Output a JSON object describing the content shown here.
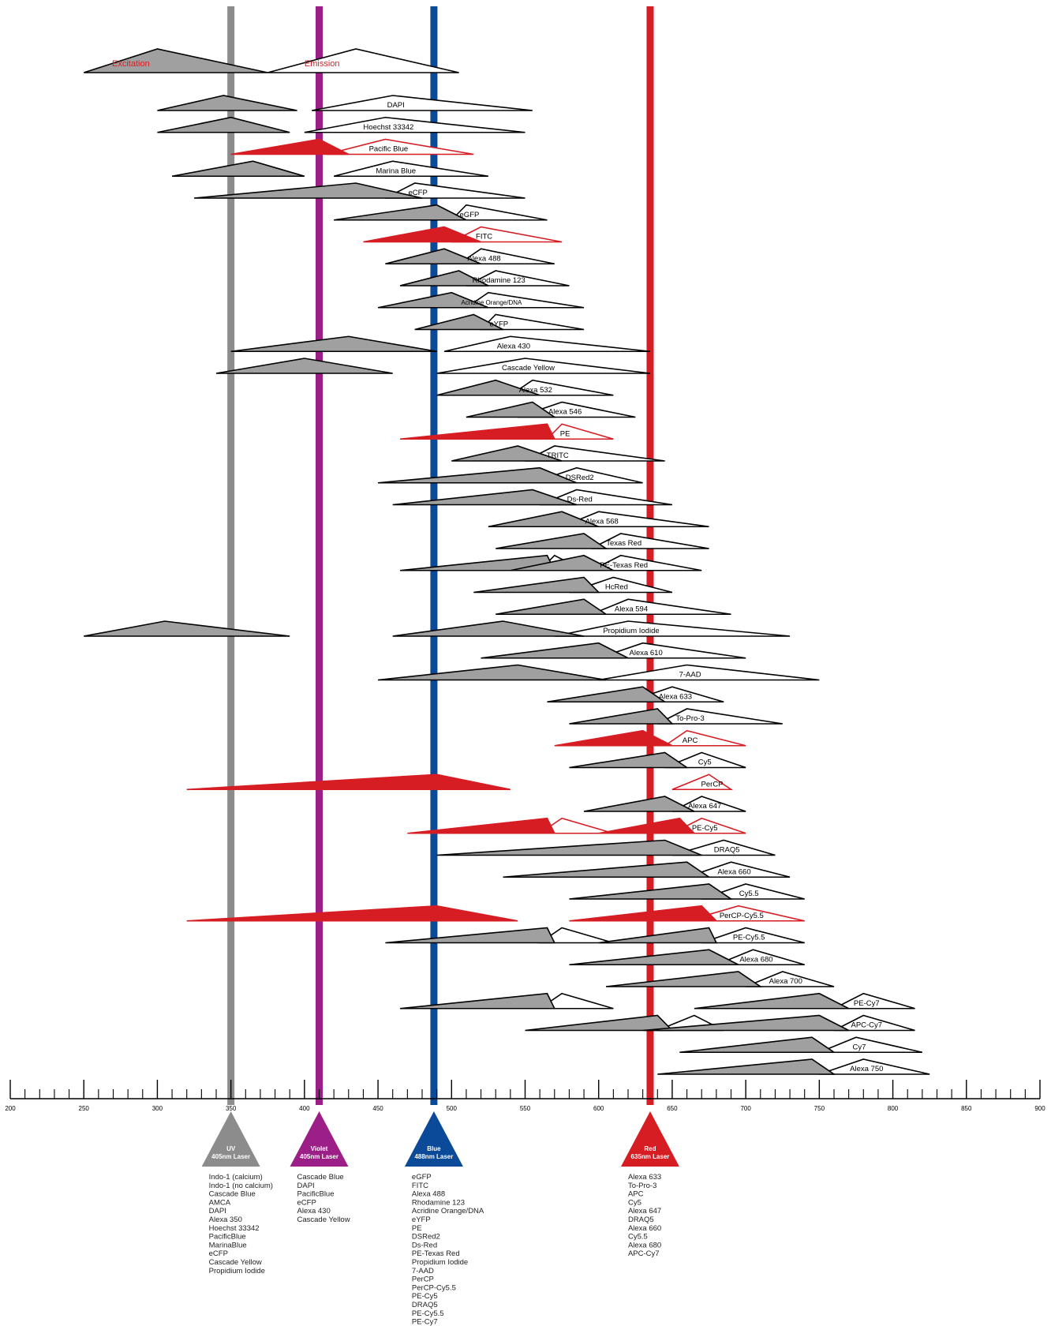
{
  "chart_data": {
    "type": "spectra",
    "xlim": [
      200,
      900
    ],
    "xticks": [
      200,
      250,
      300,
      350,
      400,
      450,
      500,
      550,
      600,
      650,
      700,
      750,
      800,
      850,
      900
    ],
    "legend": {
      "excitation": "Excitation",
      "emission": "Emission"
    },
    "colors": {
      "excitation": "#a0a0a0",
      "emission": "#ffffff",
      "highlight": "#d71d24",
      "uv": "#8c8c8c",
      "violet": "#9b1f86",
      "blue": "#0b4a99",
      "red": "#d71d24"
    },
    "lasers": [
      {
        "id": "uv",
        "wl": 350,
        "label1": "UV",
        "label2": "405nm Laser",
        "color": "#8c8c8c",
        "list": [
          "Indo-1 (calcium)",
          "Indo-1 (no calcium)",
          "Cascade Blue",
          "AMCA",
          "DAPI",
          "Alexa 350",
          "Hoechst 33342",
          "PacificBlue",
          "MarinaBlue",
          "eCFP",
          "Cascade Yellow",
          "Propidium Iodide"
        ]
      },
      {
        "id": "violet",
        "wl": 410,
        "label1": "Violet",
        "label2": "405nm Laser",
        "color": "#9b1f86",
        "list": [
          "Cascade Blue",
          "DAPI",
          "PacificBlue",
          "eCFP",
          "Alexa 430",
          "Cascade Yellow"
        ]
      },
      {
        "id": "blue",
        "wl": 488,
        "label1": "Blue",
        "label2": "488nm Laser",
        "color": "#0b4a99",
        "list": [
          "eGFP",
          "FITC",
          "Alexa 488",
          "Rhodamine 123",
          "Acridine Orange/DNA",
          "eYFP",
          "PE",
          "DSRed2",
          "Ds-Red",
          "PE-Texas Red",
          "Propidium Iodide",
          "7-AAD",
          "PerCP",
          "PerCP-Cy5.5",
          "PE-Cy5",
          "DRAQ5",
          "PE-Cy5.5",
          "PE-Cy7"
        ]
      },
      {
        "id": "red",
        "wl": 635,
        "label1": "Red",
        "label2": "635nm Laser",
        "color": "#d71d24",
        "list": [
          "Alexa 633",
          "To-Pro-3",
          "APC",
          "Cy5",
          "Alexa 647",
          "DRAQ5",
          "Alexa 660",
          "Cy5.5",
          "Alexa 680",
          "APC-Cy7"
        ]
      }
    ],
    "dyes": [
      {
        "name": "DAPI",
        "ex": [
          [
            300,
            345,
            395
          ]
        ],
        "em": [
          [
            405,
            460,
            555
          ]
        ]
      },
      {
        "name": "Hoechst 33342",
        "ex": [
          [
            300,
            350,
            390
          ]
        ],
        "em": [
          [
            400,
            455,
            550
          ]
        ]
      },
      {
        "name": "Pacific Blue",
        "red": true,
        "ex": [
          [
            350,
            410,
            430
          ]
        ],
        "em": [
          [
            415,
            455,
            515
          ]
        ]
      },
      {
        "name": "Marina Blue",
        "ex": [
          [
            310,
            365,
            400
          ]
        ],
        "em": [
          [
            420,
            460,
            525
          ]
        ]
      },
      {
        "name": "eCFP",
        "ex": [
          [
            325,
            435,
            480
          ]
        ],
        "em": [
          [
            455,
            475,
            550
          ]
        ]
      },
      {
        "name": "eGFP",
        "ex": [
          [
            420,
            490,
            510
          ]
        ],
        "em": [
          [
            500,
            510,
            565
          ]
        ]
      },
      {
        "name": "FITC",
        "red": true,
        "ex": [
          [
            440,
            495,
            520
          ]
        ],
        "em": [
          [
            500,
            520,
            575
          ]
        ]
      },
      {
        "name": "Alexa 488",
        "ex": [
          [
            455,
            495,
            520
          ]
        ],
        "em": [
          [
            505,
            520,
            570
          ]
        ]
      },
      {
        "name": "Rhodamine 123",
        "ex": [
          [
            465,
            505,
            525
          ]
        ],
        "em": [
          [
            510,
            530,
            580
          ]
        ]
      },
      {
        "name": "Acridine Orange/DNA",
        "ex": [
          [
            450,
            500,
            525
          ]
        ],
        "em": [
          [
            510,
            525,
            590
          ]
        ]
      },
      {
        "name": "eYFP",
        "ex": [
          [
            475,
            515,
            535
          ]
        ],
        "em": [
          [
            520,
            530,
            590
          ]
        ]
      },
      {
        "name": "Alexa 430",
        "ex": [
          [
            350,
            430,
            490
          ]
        ],
        "em": [
          [
            495,
            540,
            635
          ]
        ]
      },
      {
        "name": "Cascade Yellow",
        "ex": [
          [
            340,
            400,
            460
          ]
        ],
        "em": [
          [
            490,
            550,
            635
          ]
        ]
      },
      {
        "name": "Alexa 532",
        "ex": [
          [
            490,
            530,
            560
          ]
        ],
        "em": [
          [
            540,
            555,
            610
          ]
        ]
      },
      {
        "name": "Alexa 546",
        "ex": [
          [
            510,
            555,
            570
          ]
        ],
        "em": [
          [
            545,
            575,
            625
          ]
        ]
      },
      {
        "name": "PE",
        "red": true,
        "ex": [
          [
            465,
            565,
            570
          ]
        ],
        "em": [
          [
            565,
            575,
            610
          ]
        ]
      },
      {
        "name": "TRITC",
        "ex": [
          [
            500,
            545,
            575
          ]
        ],
        "em": [
          [
            550,
            570,
            645
          ]
        ]
      },
      {
        "name": "DSRed2",
        "ex": [
          [
            450,
            560,
            585
          ]
        ],
        "em": [
          [
            555,
            585,
            630
          ]
        ]
      },
      {
        "name": "Ds-Red",
        "ex": [
          [
            460,
            555,
            585
          ]
        ],
        "em": [
          [
            560,
            585,
            650
          ]
        ]
      },
      {
        "name": "Alexa 568",
        "ex": [
          [
            525,
            575,
            600
          ]
        ],
        "em": [
          [
            575,
            600,
            675
          ]
        ]
      },
      {
        "name": "Texas Red",
        "ex": [
          [
            530,
            590,
            605
          ]
        ],
        "em": [
          [
            595,
            615,
            675
          ]
        ]
      },
      {
        "name": "PE-Texas Red",
        "ex": [
          [
            465,
            565,
            570
          ],
          [
            540,
            590,
            610
          ]
        ],
        "em": [
          [
            560,
            570,
            590
          ],
          [
            595,
            615,
            670
          ]
        ]
      },
      {
        "name": "HcRed",
        "ex": [
          [
            515,
            590,
            600
          ]
        ],
        "em": [
          [
            580,
            610,
            650
          ]
        ]
      },
      {
        "name": "Alexa 594",
        "ex": [
          [
            530,
            590,
            605
          ]
        ],
        "em": [
          [
            595,
            620,
            690
          ]
        ]
      },
      {
        "name": "Propidium Iodide",
        "ex": [
          [
            250,
            305,
            390
          ],
          [
            460,
            535,
            590
          ]
        ],
        "em": [
          [
            570,
            620,
            730
          ]
        ]
      },
      {
        "name": "Alexa 610",
        "ex": [
          [
            520,
            600,
            620
          ]
        ],
        "em": [
          [
            600,
            630,
            700
          ]
        ]
      },
      {
        "name": "7-AAD",
        "ex": [
          [
            450,
            545,
            605
          ]
        ],
        "em": [
          [
            600,
            660,
            750
          ]
        ]
      },
      {
        "name": "Alexa 633",
        "ex": [
          [
            565,
            630,
            645
          ]
        ],
        "em": [
          [
            620,
            650,
            685
          ]
        ]
      },
      {
        "name": "To-Pro-3",
        "ex": [
          [
            580,
            640,
            650
          ]
        ],
        "em": [
          [
            640,
            660,
            725
          ]
        ]
      },
      {
        "name": "APC",
        "red": true,
        "ex": [
          [
            570,
            630,
            650
          ]
        ],
        "em": [
          [
            645,
            660,
            700
          ]
        ]
      },
      {
        "name": "Cy5",
        "ex": [
          [
            580,
            645,
            660
          ]
        ],
        "em": [
          [
            645,
            670,
            700
          ]
        ]
      },
      {
        "name": "PerCP",
        "red": true,
        "ex": [
          [
            320,
            490,
            540
          ]
        ],
        "em": [
          [
            650,
            675,
            690
          ]
        ]
      },
      {
        "name": "Alexa 647",
        "ex": [
          [
            590,
            645,
            665
          ]
        ],
        "em": [
          [
            650,
            670,
            700
          ]
        ]
      },
      {
        "name": "PE-Cy5",
        "red": true,
        "ex": [
          [
            470,
            565,
            570
          ],
          [
            600,
            655,
            665
          ]
        ],
        "em": [
          [
            560,
            575,
            610
          ],
          [
            650,
            670,
            700
          ]
        ]
      },
      {
        "name": "DRAQ5",
        "ex": [
          [
            490,
            645,
            670
          ]
        ],
        "em": [
          [
            650,
            685,
            720
          ]
        ]
      },
      {
        "name": "Alexa 660",
        "ex": [
          [
            535,
            660,
            675
          ]
        ],
        "em": [
          [
            660,
            690,
            730
          ]
        ]
      },
      {
        "name": "Cy5.5",
        "ex": [
          [
            580,
            675,
            690
          ]
        ],
        "em": [
          [
            670,
            700,
            740
          ]
        ]
      },
      {
        "name": "PerCP-Cy5.5",
        "red": true,
        "ex": [
          [
            320,
            490,
            545
          ],
          [
            580,
            670,
            680
          ]
        ],
        "em": [
          [
            660,
            695,
            740
          ]
        ]
      },
      {
        "name": "PE-Cy5.5",
        "ex": [
          [
            455,
            565,
            570
          ],
          [
            600,
            675,
            680
          ]
        ],
        "em": [
          [
            560,
            575,
            610
          ],
          [
            670,
            700,
            740
          ]
        ]
      },
      {
        "name": "Alexa 680",
        "ex": [
          [
            580,
            675,
            695
          ]
        ],
        "em": [
          [
            680,
            705,
            740
          ]
        ]
      },
      {
        "name": "Alexa 700",
        "ex": [
          [
            605,
            695,
            710
          ]
        ],
        "em": [
          [
            700,
            725,
            760
          ]
        ]
      },
      {
        "name": "PE-Cy7",
        "ex": [
          [
            465,
            565,
            570
          ],
          [
            665,
            750,
            770
          ]
        ],
        "em": [
          [
            560,
            575,
            610
          ],
          [
            760,
            780,
            815
          ]
        ]
      },
      {
        "name": "APC-Cy7",
        "ex": [
          [
            550,
            640,
            650
          ],
          [
            630,
            750,
            770
          ]
        ],
        "em": [
          [
            640,
            665,
            685
          ],
          [
            760,
            780,
            815
          ]
        ]
      },
      {
        "name": "Cy7",
        "ex": [
          [
            655,
            745,
            760
          ]
        ],
        "em": [
          [
            750,
            775,
            820
          ]
        ]
      },
      {
        "name": "Alexa 750",
        "ex": [
          [
            640,
            745,
            760
          ]
        ],
        "em": [
          [
            750,
            780,
            825
          ]
        ]
      }
    ]
  }
}
